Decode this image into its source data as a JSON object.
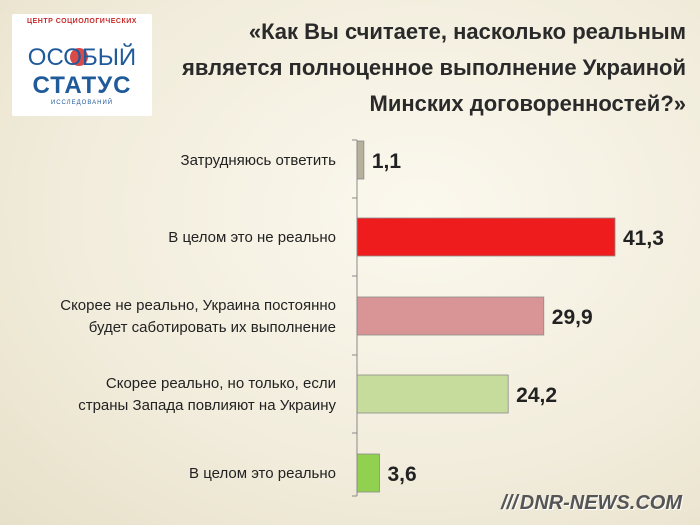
{
  "logo": {
    "line_top": "ЦЕНТР СОЦИОЛОГИЧЕСКИХ",
    "word1": "ОСОБЫЙ",
    "word2": "СТАТУС",
    "line_bottom": "ИССЛЕДОВАНИЙ"
  },
  "title_lines": [
    "«Как Вы считаете, насколько реальным",
    "является полноценное выполнение Украиной",
    "Минских договоренностей?»"
  ],
  "watermark": "DNR-NEWS.COM",
  "chart_data": {
    "type": "bar",
    "orientation": "horizontal",
    "categories": [
      [
        "Затрудняюсь ответить"
      ],
      [
        "В целом это не реально"
      ],
      [
        "Скорее не реально, Украина постоянно",
        "будет саботировать их выполнение"
      ],
      [
        "Скорее реально, но только, если",
        "страны Запада повлияют на Украину"
      ],
      [
        "В целом это реально"
      ]
    ],
    "values": [
      1.1,
      41.3,
      29.9,
      24.2,
      3.6
    ],
    "value_labels": [
      "1,1",
      "41,3",
      "29,9",
      "24,2",
      "3,6"
    ],
    "colors": [
      "#b7b09a",
      "#ee1c1c",
      "#d99595",
      "#c6dc9c",
      "#92d050"
    ],
    "xlim": [
      0,
      44
    ],
    "grid": false,
    "legend": "none"
  }
}
